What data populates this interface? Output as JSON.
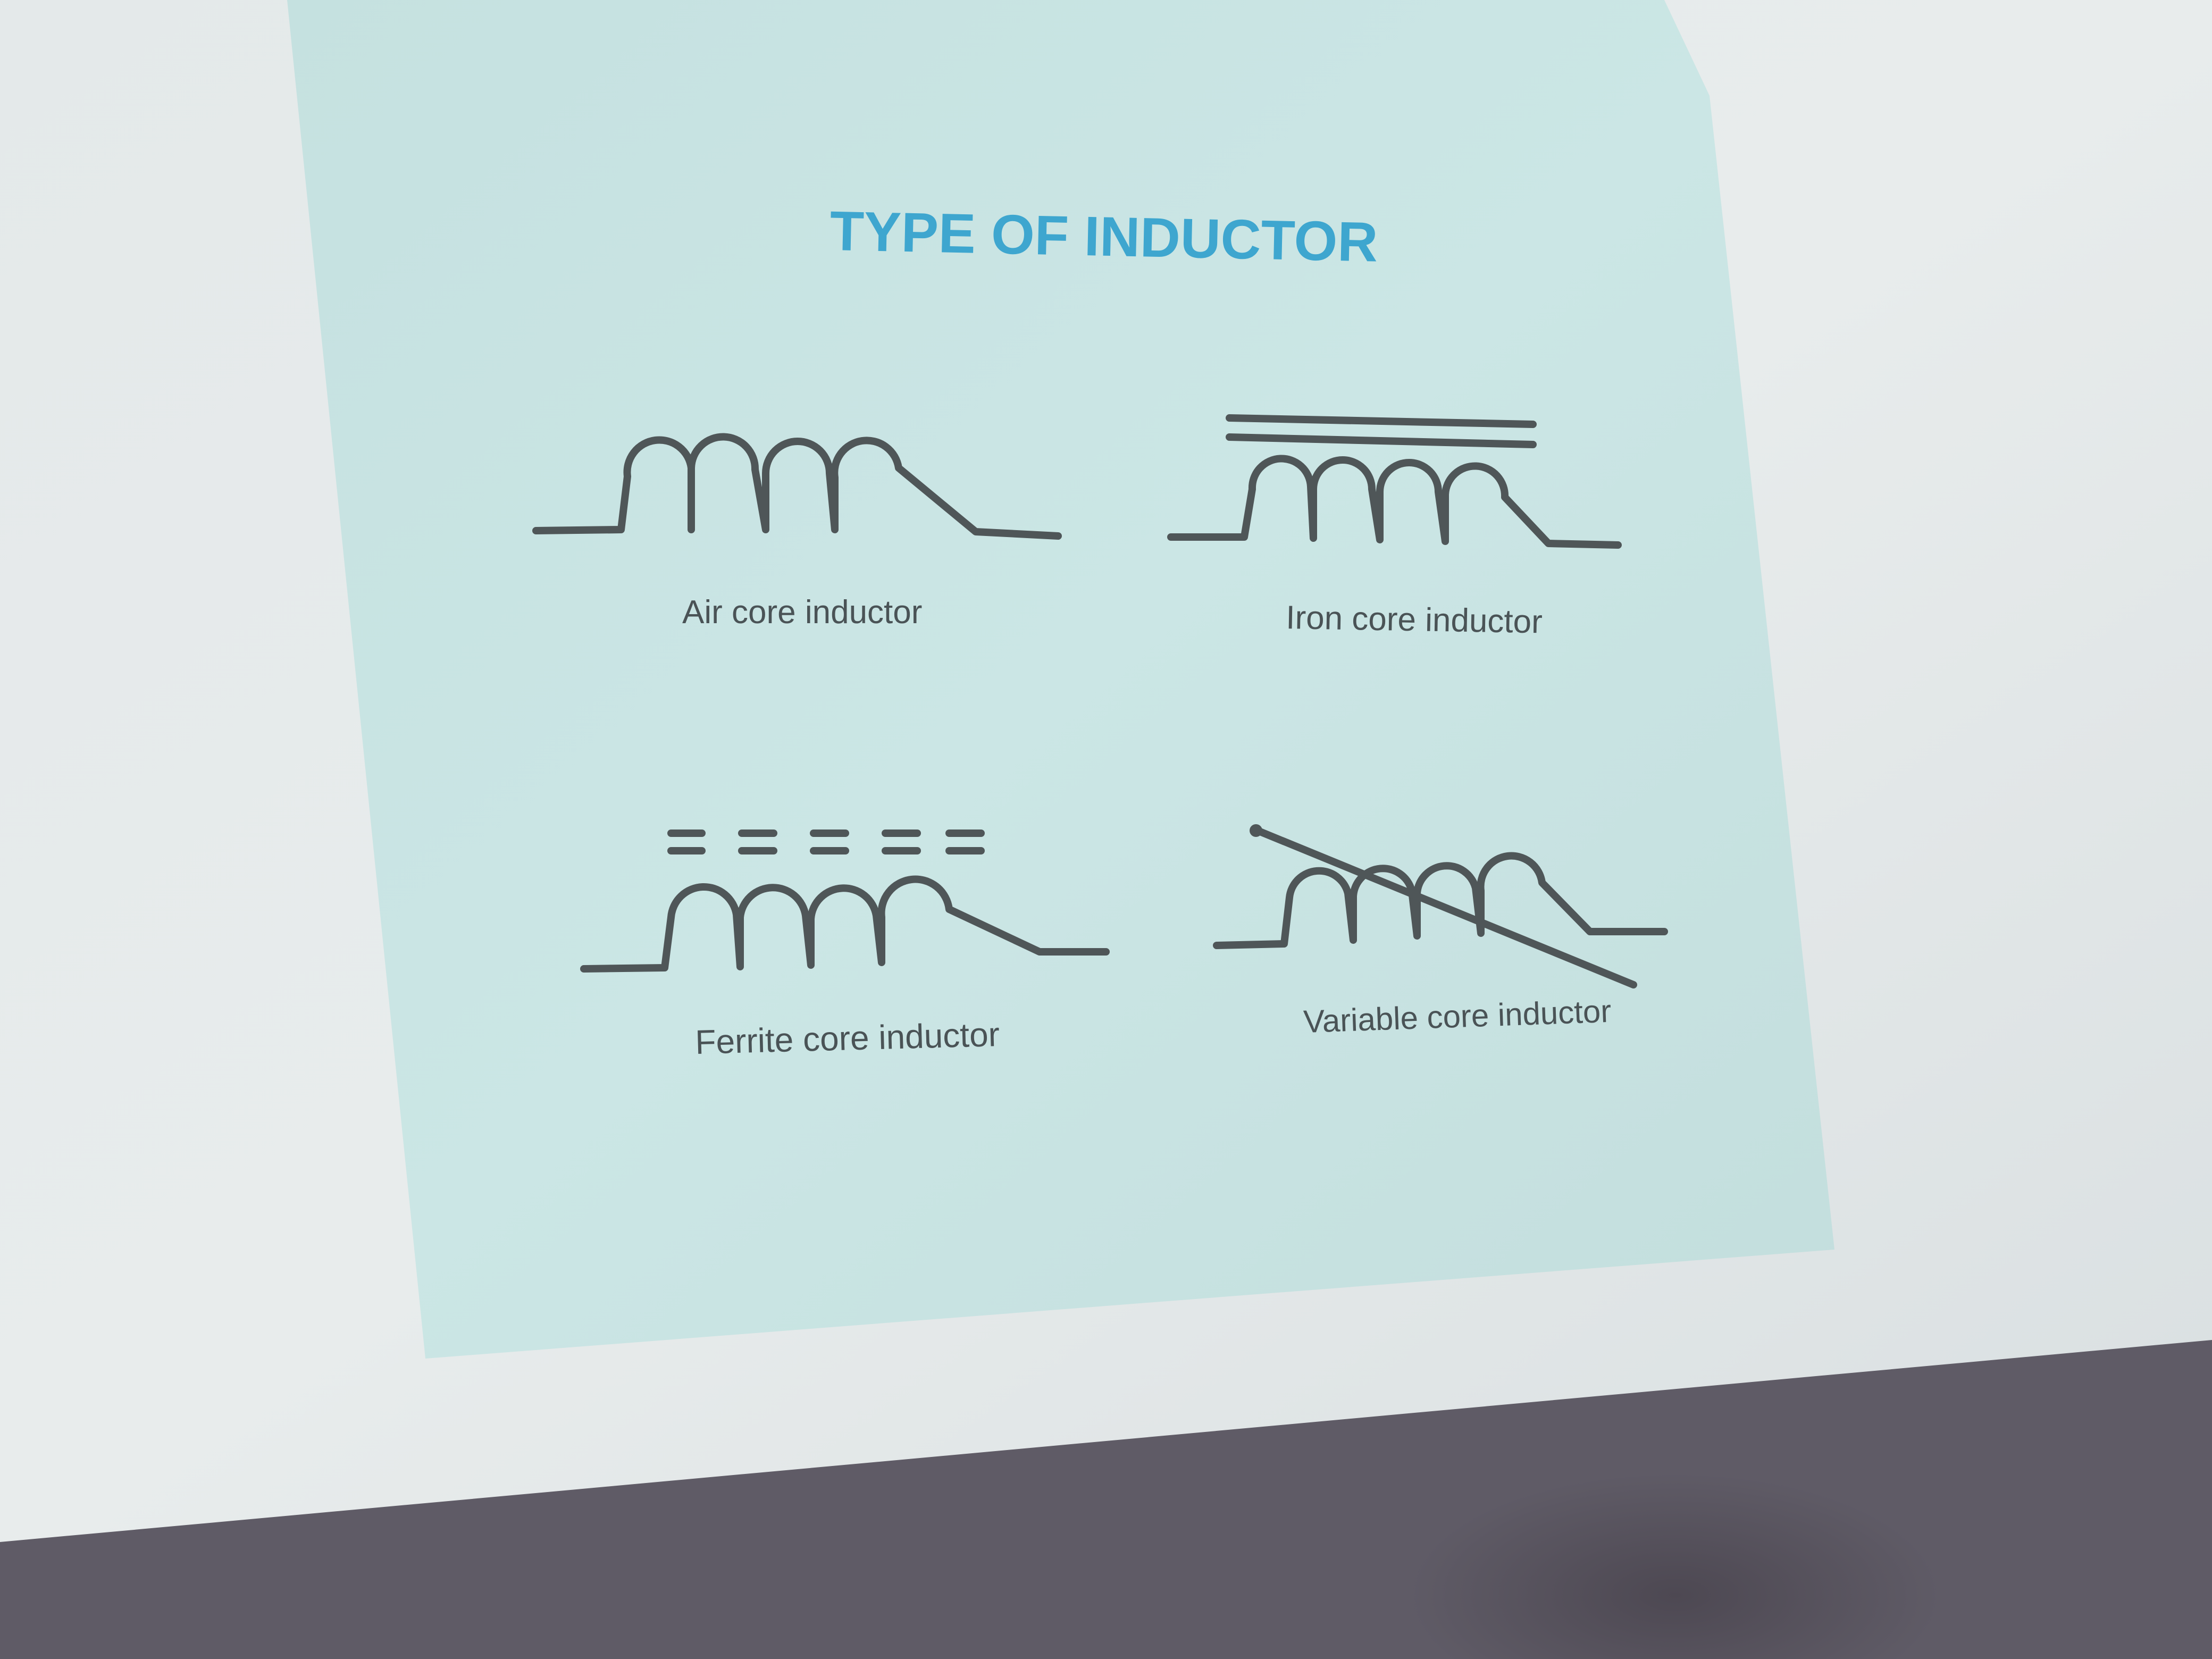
{
  "slide": {
    "title": "TYPE OF INDUCTOR"
  },
  "inductors": [
    {
      "key": "air",
      "label": "Air core inductor",
      "core": "none"
    },
    {
      "key": "iron",
      "label": "Iron core inductor",
      "core": "solid double line"
    },
    {
      "key": "ferrite",
      "label": "Ferrite core inductor",
      "core": "dashed double line"
    },
    {
      "key": "variable",
      "label": "Variable core inductor",
      "core": "diagonal arrow"
    }
  ],
  "colors": {
    "title": "#3ea6cf",
    "symbol": "#4f5658",
    "label": "#4a5356",
    "slide": "#c9e3e2",
    "screen": "#dde3e3",
    "floor": "#5f5b66"
  }
}
